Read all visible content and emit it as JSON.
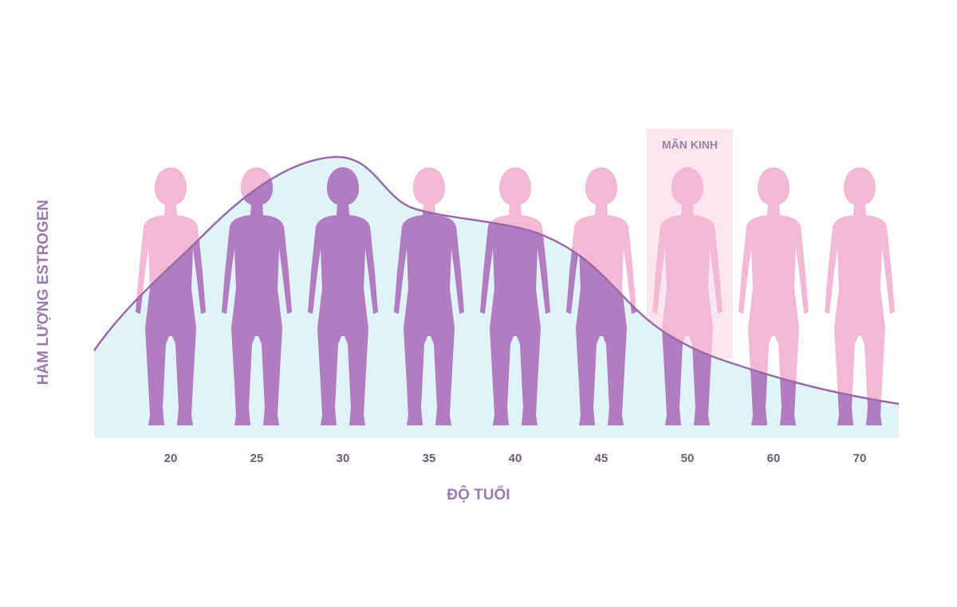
{
  "chart_data": {
    "type": "figures",
    "categories": [
      "20",
      "25",
      "30",
      "35",
      "40",
      "45",
      "50",
      "60",
      "70"
    ],
    "x_label": "ĐỘ TUỔI",
    "y_label": "HÀM LƯỢNG ESTROGEN",
    "annotation": "MÃN KINH"
  }
}
